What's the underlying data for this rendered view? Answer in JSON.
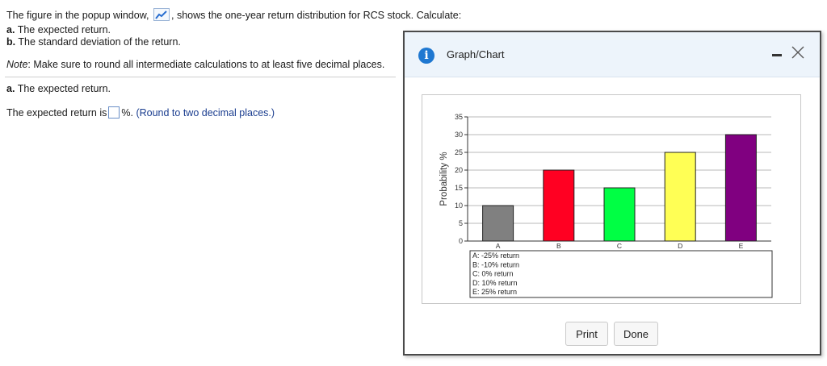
{
  "question": {
    "intro_before_icon": "The figure in the popup window,",
    "intro_after_icon": ", shows the one-year return distribution for RCS stock. Calculate:",
    "part_a_label": "a.",
    "part_a_text": "The expected return.",
    "part_b_label": "b.",
    "part_b_text": "The standard deviation of the return.",
    "note_label": "Note",
    "note_text": ": Make sure to round all intermediate calculations to at least five decimal places.",
    "section_a_label": "a.",
    "section_a_text": "The expected return.",
    "answer_prefix": "The expected return is",
    "answer_suffix": "%.",
    "answer_hint": "(Round to two decimal places.)",
    "answer_value": ""
  },
  "popup": {
    "title": "Graph/Chart",
    "info_icon": "info-icon",
    "print_label": "Print",
    "done_label": "Done"
  },
  "chart_data": {
    "type": "bar",
    "categories": [
      "A",
      "B",
      "C",
      "D",
      "E"
    ],
    "values": [
      10,
      20,
      15,
      25,
      30
    ],
    "colors": [
      "#808080",
      "#ff0022",
      "#00ff44",
      "#ffff55",
      "#800080"
    ],
    "ylabel": "Probability %",
    "xlabel": "",
    "ylim": [
      0,
      35
    ],
    "yticks": [
      0,
      5,
      10,
      15,
      20,
      25,
      30,
      35
    ],
    "grid": true,
    "legend": [
      "A: -25% return",
      "B: -10% return",
      "C: 0% return",
      "D: 10% return",
      "E: 25% return"
    ]
  }
}
